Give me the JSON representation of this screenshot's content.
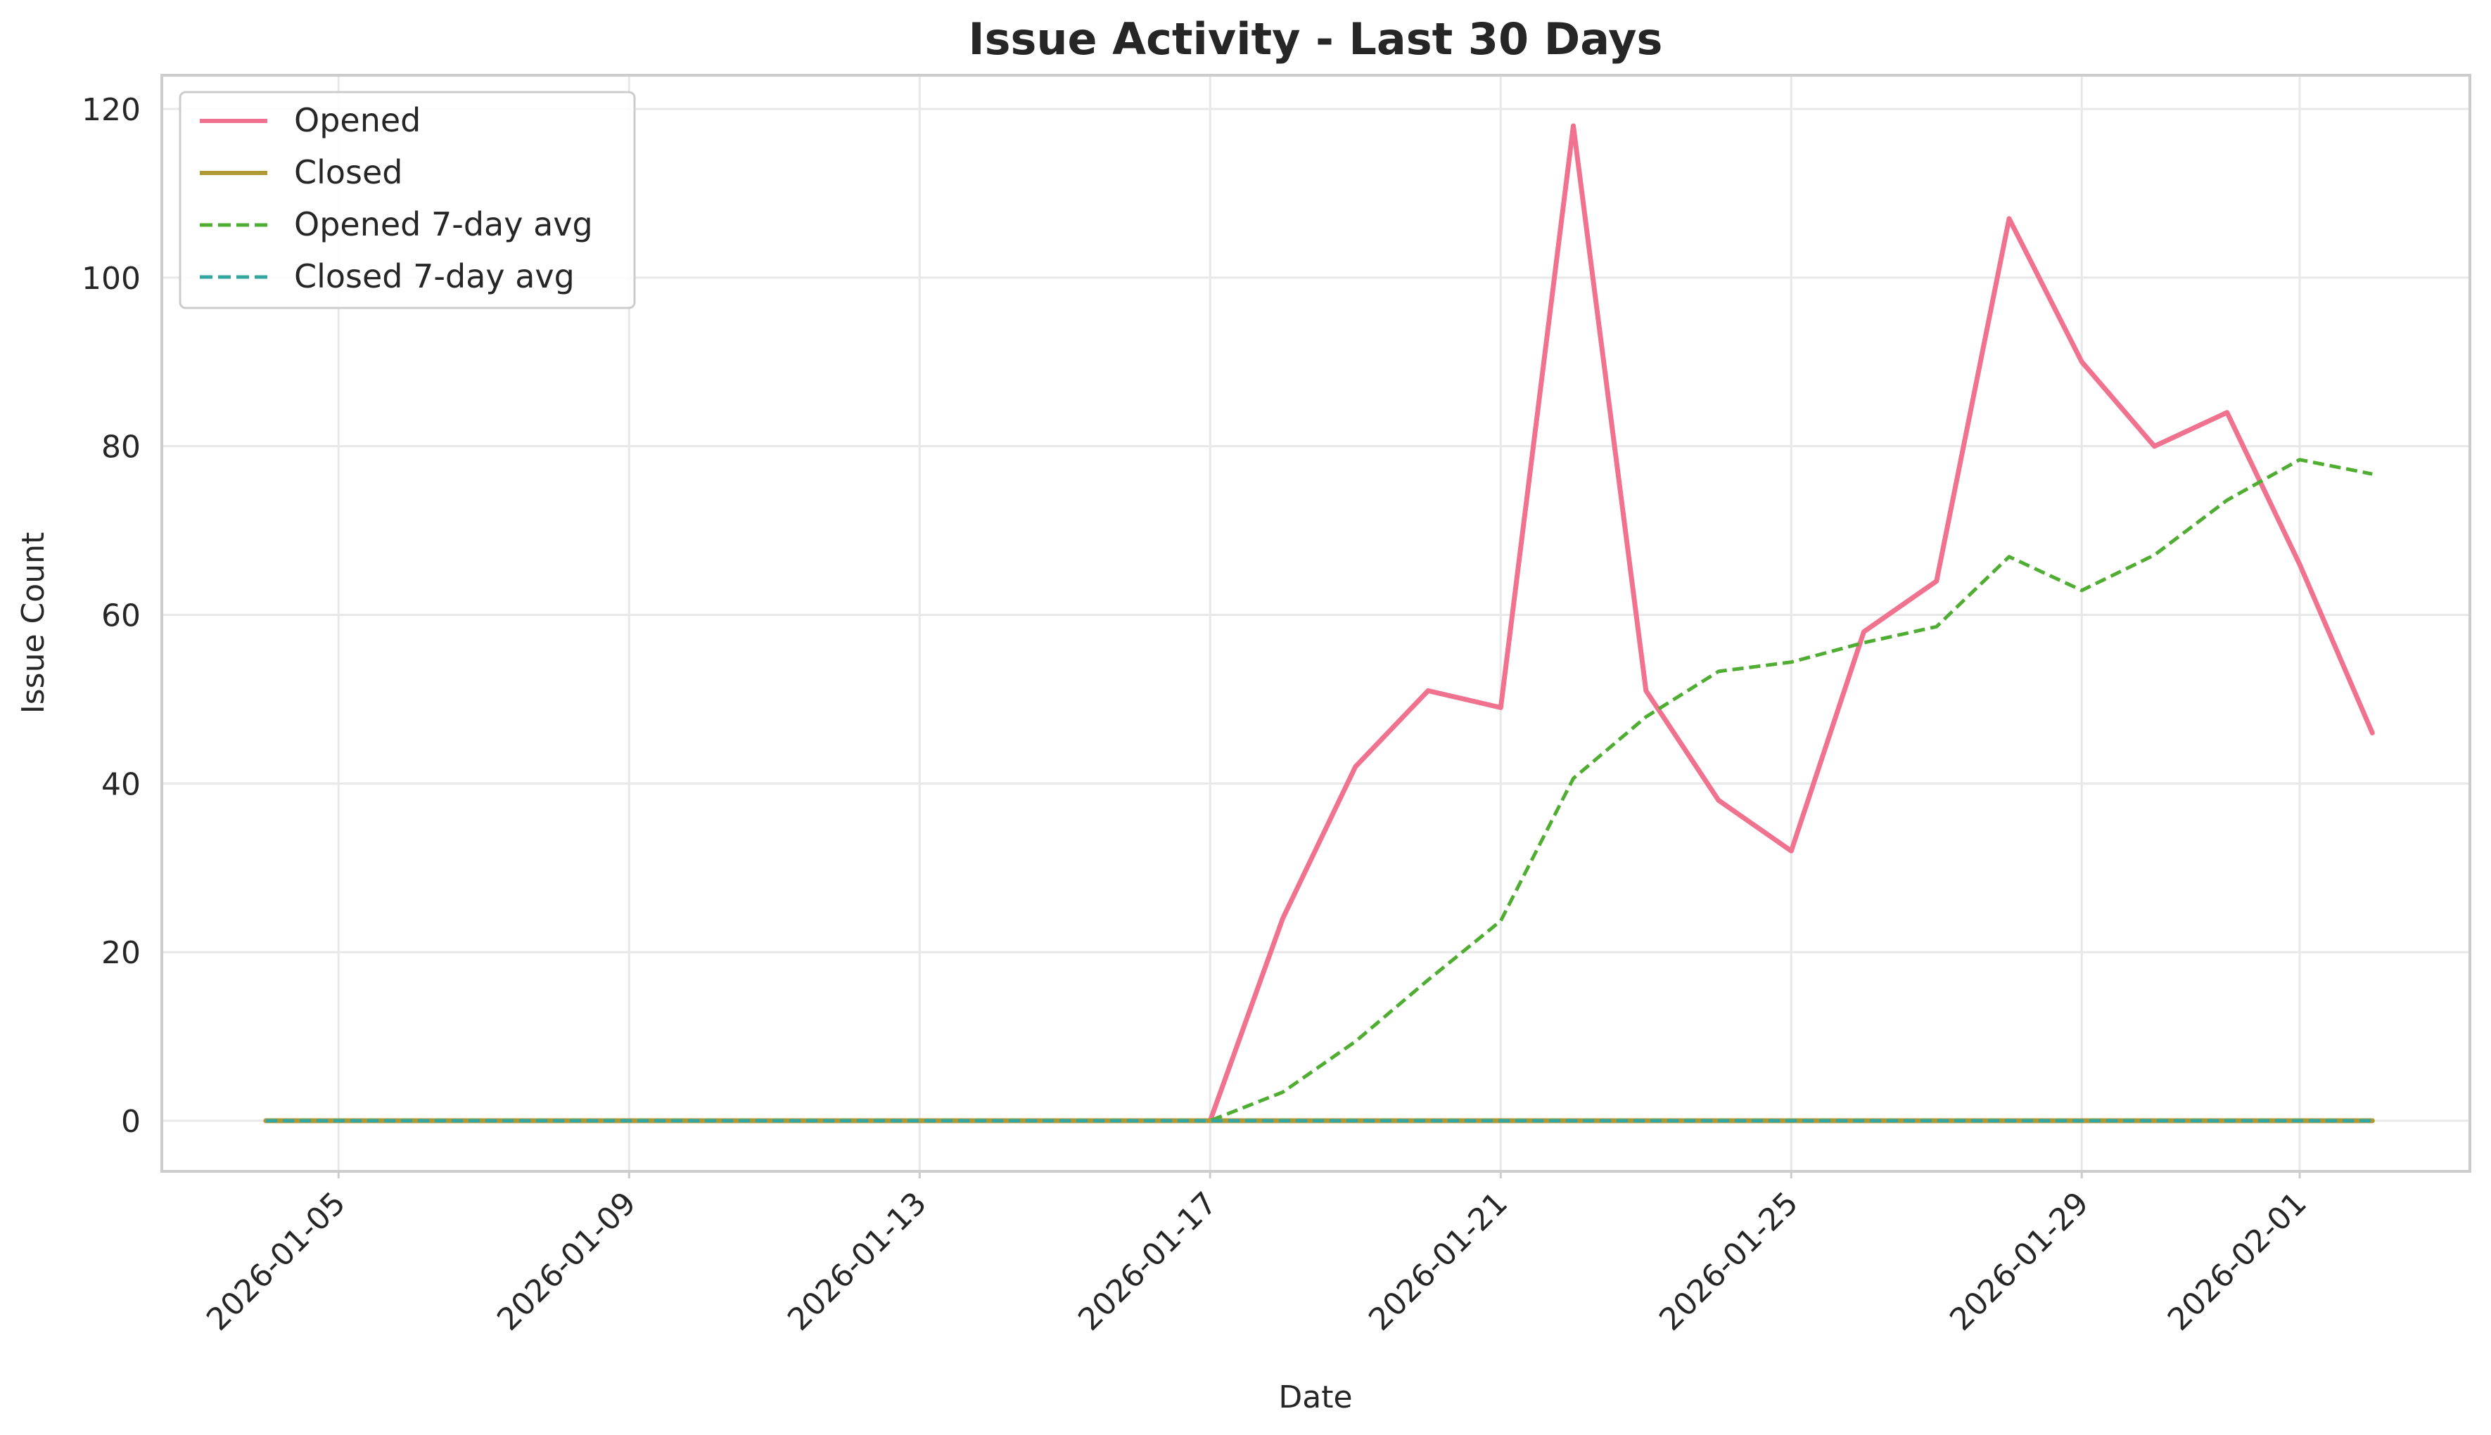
{
  "chart_data": {
    "type": "line",
    "title": "Issue Activity - Last 30 Days",
    "xlabel": "Date",
    "ylabel": "Issue Count",
    "x": [
      "2026-01-04",
      "2026-01-05",
      "2026-01-06",
      "2026-01-07",
      "2026-01-08",
      "2026-01-09",
      "2026-01-10",
      "2026-01-11",
      "2026-01-12",
      "2026-01-13",
      "2026-01-14",
      "2026-01-15",
      "2026-01-16",
      "2026-01-17",
      "2026-01-18",
      "2026-01-19",
      "2026-01-20",
      "2026-01-21",
      "2026-01-22",
      "2026-01-23",
      "2026-01-24",
      "2026-01-25",
      "2026-01-26",
      "2026-01-27",
      "2026-01-28",
      "2026-01-29",
      "2026-01-30",
      "2026-01-31",
      "2026-02-01",
      "2026-02-02"
    ],
    "x_ticks": [
      "2026-01-05",
      "2026-01-09",
      "2026-01-13",
      "2026-01-17",
      "2026-01-21",
      "2026-01-25",
      "2026-01-29",
      "2026-02-01"
    ],
    "ylim": [
      -6,
      124
    ],
    "y_ticks": [
      0,
      20,
      40,
      60,
      80,
      100,
      120
    ],
    "grid": true,
    "legend_position": "top-left",
    "series": [
      {
        "name": "Opened",
        "style": "solid",
        "color": "#f0728e",
        "values": [
          0,
          0,
          0,
          0,
          0,
          0,
          0,
          0,
          0,
          0,
          0,
          0,
          0,
          0,
          24,
          42,
          51,
          49,
          118,
          51,
          38,
          32,
          58,
          64,
          107,
          90,
          80,
          84,
          66,
          46
        ]
      },
      {
        "name": "Closed",
        "style": "solid",
        "color": "#b09935",
        "values": [
          0,
          0,
          0,
          0,
          0,
          0,
          0,
          0,
          0,
          0,
          0,
          0,
          0,
          0,
          0,
          0,
          0,
          0,
          0,
          0,
          0,
          0,
          0,
          0,
          0,
          0,
          0,
          0,
          0,
          0
        ]
      },
      {
        "name": "Opened 7-day avg",
        "style": "dashed",
        "color": "#4fae32",
        "values": [
          0,
          0,
          0,
          0,
          0,
          0,
          0,
          0,
          0,
          0,
          0,
          0,
          0,
          0,
          3.4,
          9.4,
          16.7,
          23.7,
          40.6,
          47.9,
          53.3,
          54.4,
          56.7,
          58.6,
          66.9,
          62.9,
          67.1,
          73.6,
          78.4,
          76.7
        ]
      },
      {
        "name": "Closed 7-day avg",
        "style": "dashed",
        "color": "#33a6a0",
        "values": [
          0,
          0,
          0,
          0,
          0,
          0,
          0,
          0,
          0,
          0,
          0,
          0,
          0,
          0,
          0,
          0,
          0,
          0,
          0,
          0,
          0,
          0,
          0,
          0,
          0,
          0,
          0,
          0,
          0,
          0
        ]
      }
    ]
  }
}
